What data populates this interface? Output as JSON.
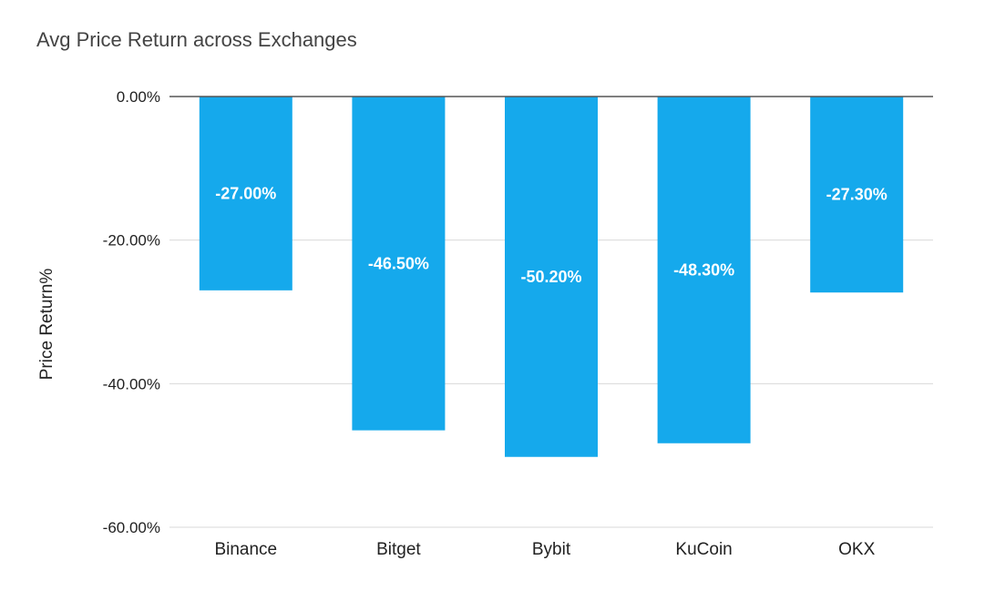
{
  "chart_data": {
    "type": "bar",
    "title": "Avg Price Return across Exchanges",
    "xlabel": "",
    "ylabel": "Price Return%",
    "categories": [
      "Binance",
      "Bitget",
      "Bybit",
      "KuCoin",
      "OKX"
    ],
    "values": [
      -27.0,
      -46.5,
      -50.2,
      -48.3,
      -27.3
    ],
    "data_labels": [
      "-27.00%",
      "-46.50%",
      "-50.20%",
      "-48.30%",
      "-27.30%"
    ],
    "ylim": [
      -60,
      0
    ],
    "y_ticks": [
      0,
      -20,
      -40,
      -60
    ],
    "y_tick_labels": [
      "0.00%",
      "-20.00%",
      "-40.00%",
      "-60.00%"
    ],
    "grid": true,
    "legend": "none",
    "bar_color": "#15a9ec",
    "label_color": "#ffffff"
  }
}
